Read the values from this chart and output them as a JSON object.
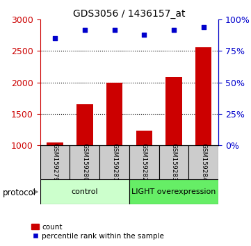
{
  "title": "GDS3056 / 1436157_at",
  "samples": [
    "GSM159279",
    "GSM159280",
    "GSM159281",
    "GSM159282",
    "GSM159283",
    "GSM159284"
  ],
  "counts": [
    1040,
    1650,
    1990,
    1230,
    2080,
    2560
  ],
  "percentile_ranks_pct": [
    85,
    92,
    92,
    88,
    92,
    94
  ],
  "ylim_left": [
    1000,
    3000
  ],
  "ylim_right": [
    0,
    100
  ],
  "yticks_left": [
    1000,
    1500,
    2000,
    2500,
    3000
  ],
  "yticks_right": [
    0,
    25,
    50,
    75,
    100
  ],
  "bar_color": "#cc0000",
  "dot_color": "#0000cc",
  "bar_width": 0.55,
  "control_samples": 3,
  "light_samples": 3,
  "control_label": "control",
  "light_label": "LIGHT overexpression",
  "protocol_label": "protocol",
  "legend_bar_label": "count",
  "legend_dot_label": "percentile rank within the sample",
  "control_bg": "#ccffcc",
  "light_bg": "#66ee66",
  "sample_bg": "#cccccc",
  "right_axis_color": "#0000cc",
  "left_axis_color": "#cc0000"
}
